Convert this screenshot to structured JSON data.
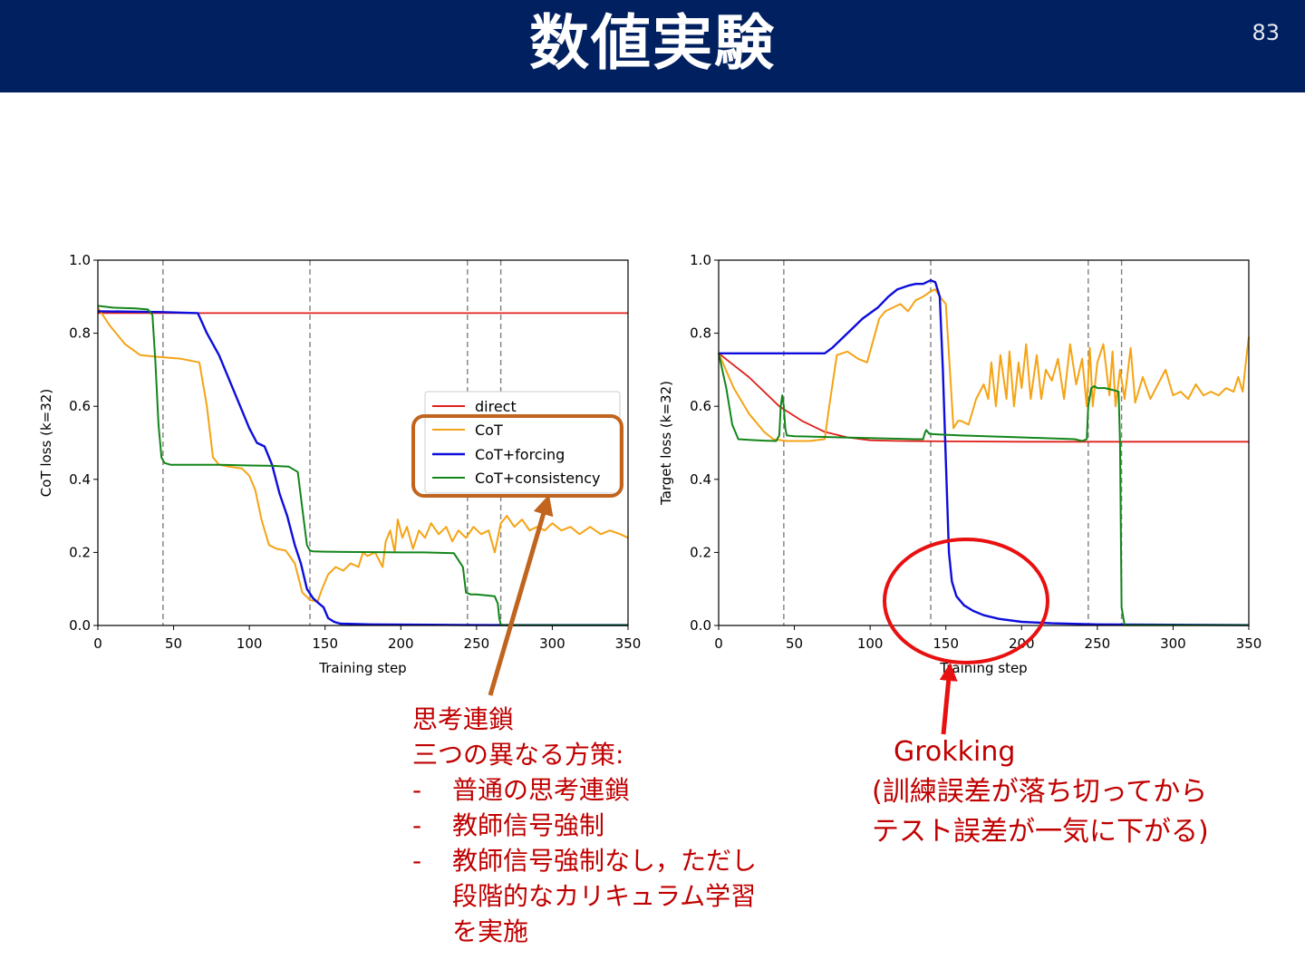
{
  "header": {
    "title": "数値実験",
    "page_number": "83"
  },
  "colors": {
    "header_bg": "#012060",
    "direct": "#e0201b",
    "cot": "#f5a314",
    "cot_forcing": "#0d0ddc",
    "cot_consistency": "#12851a",
    "annotation": "#c00000",
    "cot_callout": "#c0641e",
    "grok_callout": "#e81010"
  },
  "chart_data": [
    {
      "type": "line",
      "ylabel": "CoT loss (k=32)",
      "xlabel": "Training step",
      "xlim": [
        0,
        350
      ],
      "ylim": [
        0,
        1.0
      ],
      "xticks": [
        "0",
        "50",
        "100",
        "150",
        "200",
        "250",
        "300",
        "350"
      ],
      "yticks": [
        "0.0",
        "0.2",
        "0.4",
        "0.6",
        "0.8",
        "1.0"
      ],
      "vlines": [
        43,
        140,
        244,
        266
      ],
      "legend": {
        "placement": "center-right",
        "entries": [
          "direct",
          "CoT",
          "CoT+forcing",
          "CoT+consistency"
        ]
      },
      "series": [
        {
          "name": "direct",
          "x": [
            0,
            350
          ],
          "y": [
            0.855,
            0.855
          ]
        },
        {
          "name": "CoT",
          "x": [
            0,
            8,
            18,
            28,
            40,
            55,
            67,
            72,
            76,
            80,
            86,
            95,
            100,
            104,
            108,
            113,
            118,
            124,
            130,
            135,
            140,
            145,
            148,
            152,
            157,
            162,
            167,
            172,
            175,
            178,
            183,
            188,
            190,
            193,
            196,
            198,
            201,
            204,
            208,
            212,
            216,
            220,
            225,
            230,
            234,
            238,
            243,
            248,
            253,
            258,
            262,
            266,
            270,
            275,
            280,
            285,
            290,
            295,
            300,
            306,
            312,
            318,
            325,
            332,
            338,
            345,
            350
          ],
          "y": [
            0.87,
            0.82,
            0.77,
            0.74,
            0.735,
            0.73,
            0.72,
            0.6,
            0.46,
            0.44,
            0.435,
            0.43,
            0.41,
            0.37,
            0.29,
            0.22,
            0.21,
            0.205,
            0.17,
            0.09,
            0.07,
            0.065,
            0.1,
            0.14,
            0.16,
            0.15,
            0.17,
            0.16,
            0.2,
            0.19,
            0.2,
            0.16,
            0.23,
            0.26,
            0.2,
            0.29,
            0.24,
            0.27,
            0.21,
            0.26,
            0.24,
            0.28,
            0.25,
            0.27,
            0.23,
            0.26,
            0.24,
            0.27,
            0.25,
            0.26,
            0.2,
            0.28,
            0.3,
            0.27,
            0.29,
            0.26,
            0.27,
            0.26,
            0.28,
            0.26,
            0.27,
            0.25,
            0.27,
            0.25,
            0.26,
            0.25,
            0.24
          ]
        },
        {
          "name": "CoT+forcing",
          "x": [
            0,
            40,
            66,
            72,
            80,
            90,
            100,
            105,
            110,
            115,
            120,
            125,
            130,
            134,
            138,
            142,
            146,
            149,
            152,
            156,
            160,
            180,
            220,
            260,
            300,
            350
          ],
          "y": [
            0.86,
            0.858,
            0.855,
            0.8,
            0.74,
            0.64,
            0.54,
            0.5,
            0.49,
            0.44,
            0.36,
            0.3,
            0.22,
            0.17,
            0.1,
            0.075,
            0.06,
            0.05,
            0.02,
            0.01,
            0.005,
            0.003,
            0.002,
            0.001,
            0.001,
            0.001
          ]
        },
        {
          "name": "CoT+consistency",
          "x": [
            0,
            10,
            25,
            33,
            36,
            38,
            40,
            42,
            44,
            48,
            60,
            80,
            100,
            115,
            126,
            132,
            135,
            138,
            140,
            142,
            150,
            175,
            200,
            215,
            235,
            241,
            243,
            246,
            250,
            262,
            264,
            265,
            266,
            270,
            300,
            350
          ],
          "y": [
            0.875,
            0.87,
            0.868,
            0.865,
            0.85,
            0.72,
            0.55,
            0.46,
            0.445,
            0.44,
            0.44,
            0.44,
            0.438,
            0.437,
            0.435,
            0.42,
            0.32,
            0.22,
            0.205,
            0.203,
            0.202,
            0.201,
            0.2,
            0.2,
            0.198,
            0.16,
            0.09,
            0.085,
            0.085,
            0.08,
            0.06,
            0.02,
            0.002,
            0.001,
            0.001,
            0.001
          ]
        }
      ]
    },
    {
      "type": "line",
      "ylabel": "Target loss (k=32)",
      "xlabel": "Training step",
      "xlim": [
        0,
        350
      ],
      "ylim": [
        0,
        1.0
      ],
      "xticks": [
        "0",
        "50",
        "100",
        "150",
        "200",
        "250",
        "300",
        "350"
      ],
      "yticks": [
        "0.0",
        "0.2",
        "0.4",
        "0.6",
        "0.8",
        "1.0"
      ],
      "vlines": [
        43,
        140,
        244,
        266
      ],
      "series": [
        {
          "name": "direct",
          "x": [
            0,
            20,
            40,
            55,
            70,
            85,
            100,
            120,
            150,
            200,
            250,
            300,
            350
          ],
          "y": [
            0.745,
            0.68,
            0.6,
            0.56,
            0.53,
            0.515,
            0.507,
            0.505,
            0.504,
            0.503,
            0.503,
            0.503,
            0.503
          ]
        },
        {
          "name": "CoT",
          "x": [
            0,
            10,
            20,
            30,
            36,
            45,
            60,
            70,
            73,
            78,
            85,
            92,
            98,
            102,
            106,
            110,
            115,
            120,
            125,
            130,
            135,
            140,
            143,
            146,
            150,
            155,
            158,
            160,
            165,
            170,
            175,
            178,
            180,
            183,
            186,
            190,
            192,
            195,
            198,
            200,
            203,
            206,
            210,
            213,
            216,
            220,
            224,
            228,
            232,
            236,
            240,
            243,
            245,
            247,
            250,
            254,
            258,
            260,
            262,
            265,
            268,
            272,
            275,
            280,
            285,
            290,
            295,
            300,
            305,
            310,
            315,
            320,
            325,
            330,
            335,
            340,
            343,
            346,
            348,
            350
          ],
          "y": [
            0.745,
            0.65,
            0.58,
            0.53,
            0.51,
            0.505,
            0.505,
            0.51,
            0.6,
            0.74,
            0.75,
            0.73,
            0.72,
            0.78,
            0.84,
            0.86,
            0.87,
            0.88,
            0.86,
            0.89,
            0.9,
            0.915,
            0.92,
            0.9,
            0.88,
            0.54,
            0.56,
            0.56,
            0.55,
            0.62,
            0.66,
            0.62,
            0.72,
            0.6,
            0.74,
            0.62,
            0.75,
            0.6,
            0.72,
            0.65,
            0.77,
            0.62,
            0.74,
            0.62,
            0.7,
            0.67,
            0.73,
            0.62,
            0.77,
            0.66,
            0.73,
            0.6,
            0.76,
            0.6,
            0.72,
            0.77,
            0.63,
            0.75,
            0.6,
            0.7,
            0.62,
            0.76,
            0.61,
            0.68,
            0.62,
            0.66,
            0.7,
            0.63,
            0.64,
            0.62,
            0.66,
            0.63,
            0.64,
            0.63,
            0.65,
            0.64,
            0.68,
            0.64,
            0.72,
            0.79
          ]
        },
        {
          "name": "CoT+forcing",
          "x": [
            0,
            40,
            60,
            70,
            75,
            85,
            95,
            105,
            112,
            118,
            125,
            130,
            135,
            140,
            143,
            146,
            148,
            150,
            152,
            154,
            157,
            162,
            168,
            175,
            185,
            200,
            220,
            250,
            300,
            350
          ],
          "y": [
            0.745,
            0.745,
            0.745,
            0.745,
            0.76,
            0.8,
            0.84,
            0.87,
            0.9,
            0.92,
            0.93,
            0.935,
            0.935,
            0.945,
            0.94,
            0.9,
            0.7,
            0.45,
            0.2,
            0.12,
            0.08,
            0.055,
            0.04,
            0.028,
            0.018,
            0.01,
            0.006,
            0.003,
            0.002,
            0.001
          ]
        },
        {
          "name": "CoT+consistency",
          "x": [
            0,
            5,
            9,
            13,
            20,
            30,
            38,
            40,
            41,
            42,
            43,
            44,
            45,
            50,
            80,
            130,
            135,
            136,
            137,
            138,
            139,
            140,
            145,
            160,
            200,
            235,
            240,
            243,
            244,
            246,
            248,
            250,
            255,
            260,
            264,
            265,
            266,
            268,
            270,
            300,
            350
          ],
          "y": [
            0.745,
            0.65,
            0.55,
            0.51,
            0.508,
            0.506,
            0.505,
            0.52,
            0.6,
            0.63,
            0.6,
            0.54,
            0.52,
            0.518,
            0.515,
            0.51,
            0.51,
            0.525,
            0.535,
            0.53,
            0.525,
            0.524,
            0.523,
            0.52,
            0.515,
            0.51,
            0.505,
            0.51,
            0.6,
            0.65,
            0.655,
            0.65,
            0.65,
            0.645,
            0.64,
            0.5,
            0.05,
            0.001,
            0.001,
            0.001,
            0.001
          ]
        }
      ]
    }
  ],
  "notes": {
    "cot": {
      "title": "思考連鎖",
      "subtitle": "三つの異なる方策:",
      "bullet": "-",
      "items": [
        "普通の思考連鎖",
        "教師信号強制",
        "教師信号強制なし，ただし"
      ],
      "continuation": [
        "段階的なカリキュラム学習",
        "を実施"
      ]
    },
    "grokking": {
      "title": "Grokking",
      "lines": [
        "(訓練誤差が落ち切ってから",
        "テスト誤差が一気に下がる)"
      ]
    }
  }
}
